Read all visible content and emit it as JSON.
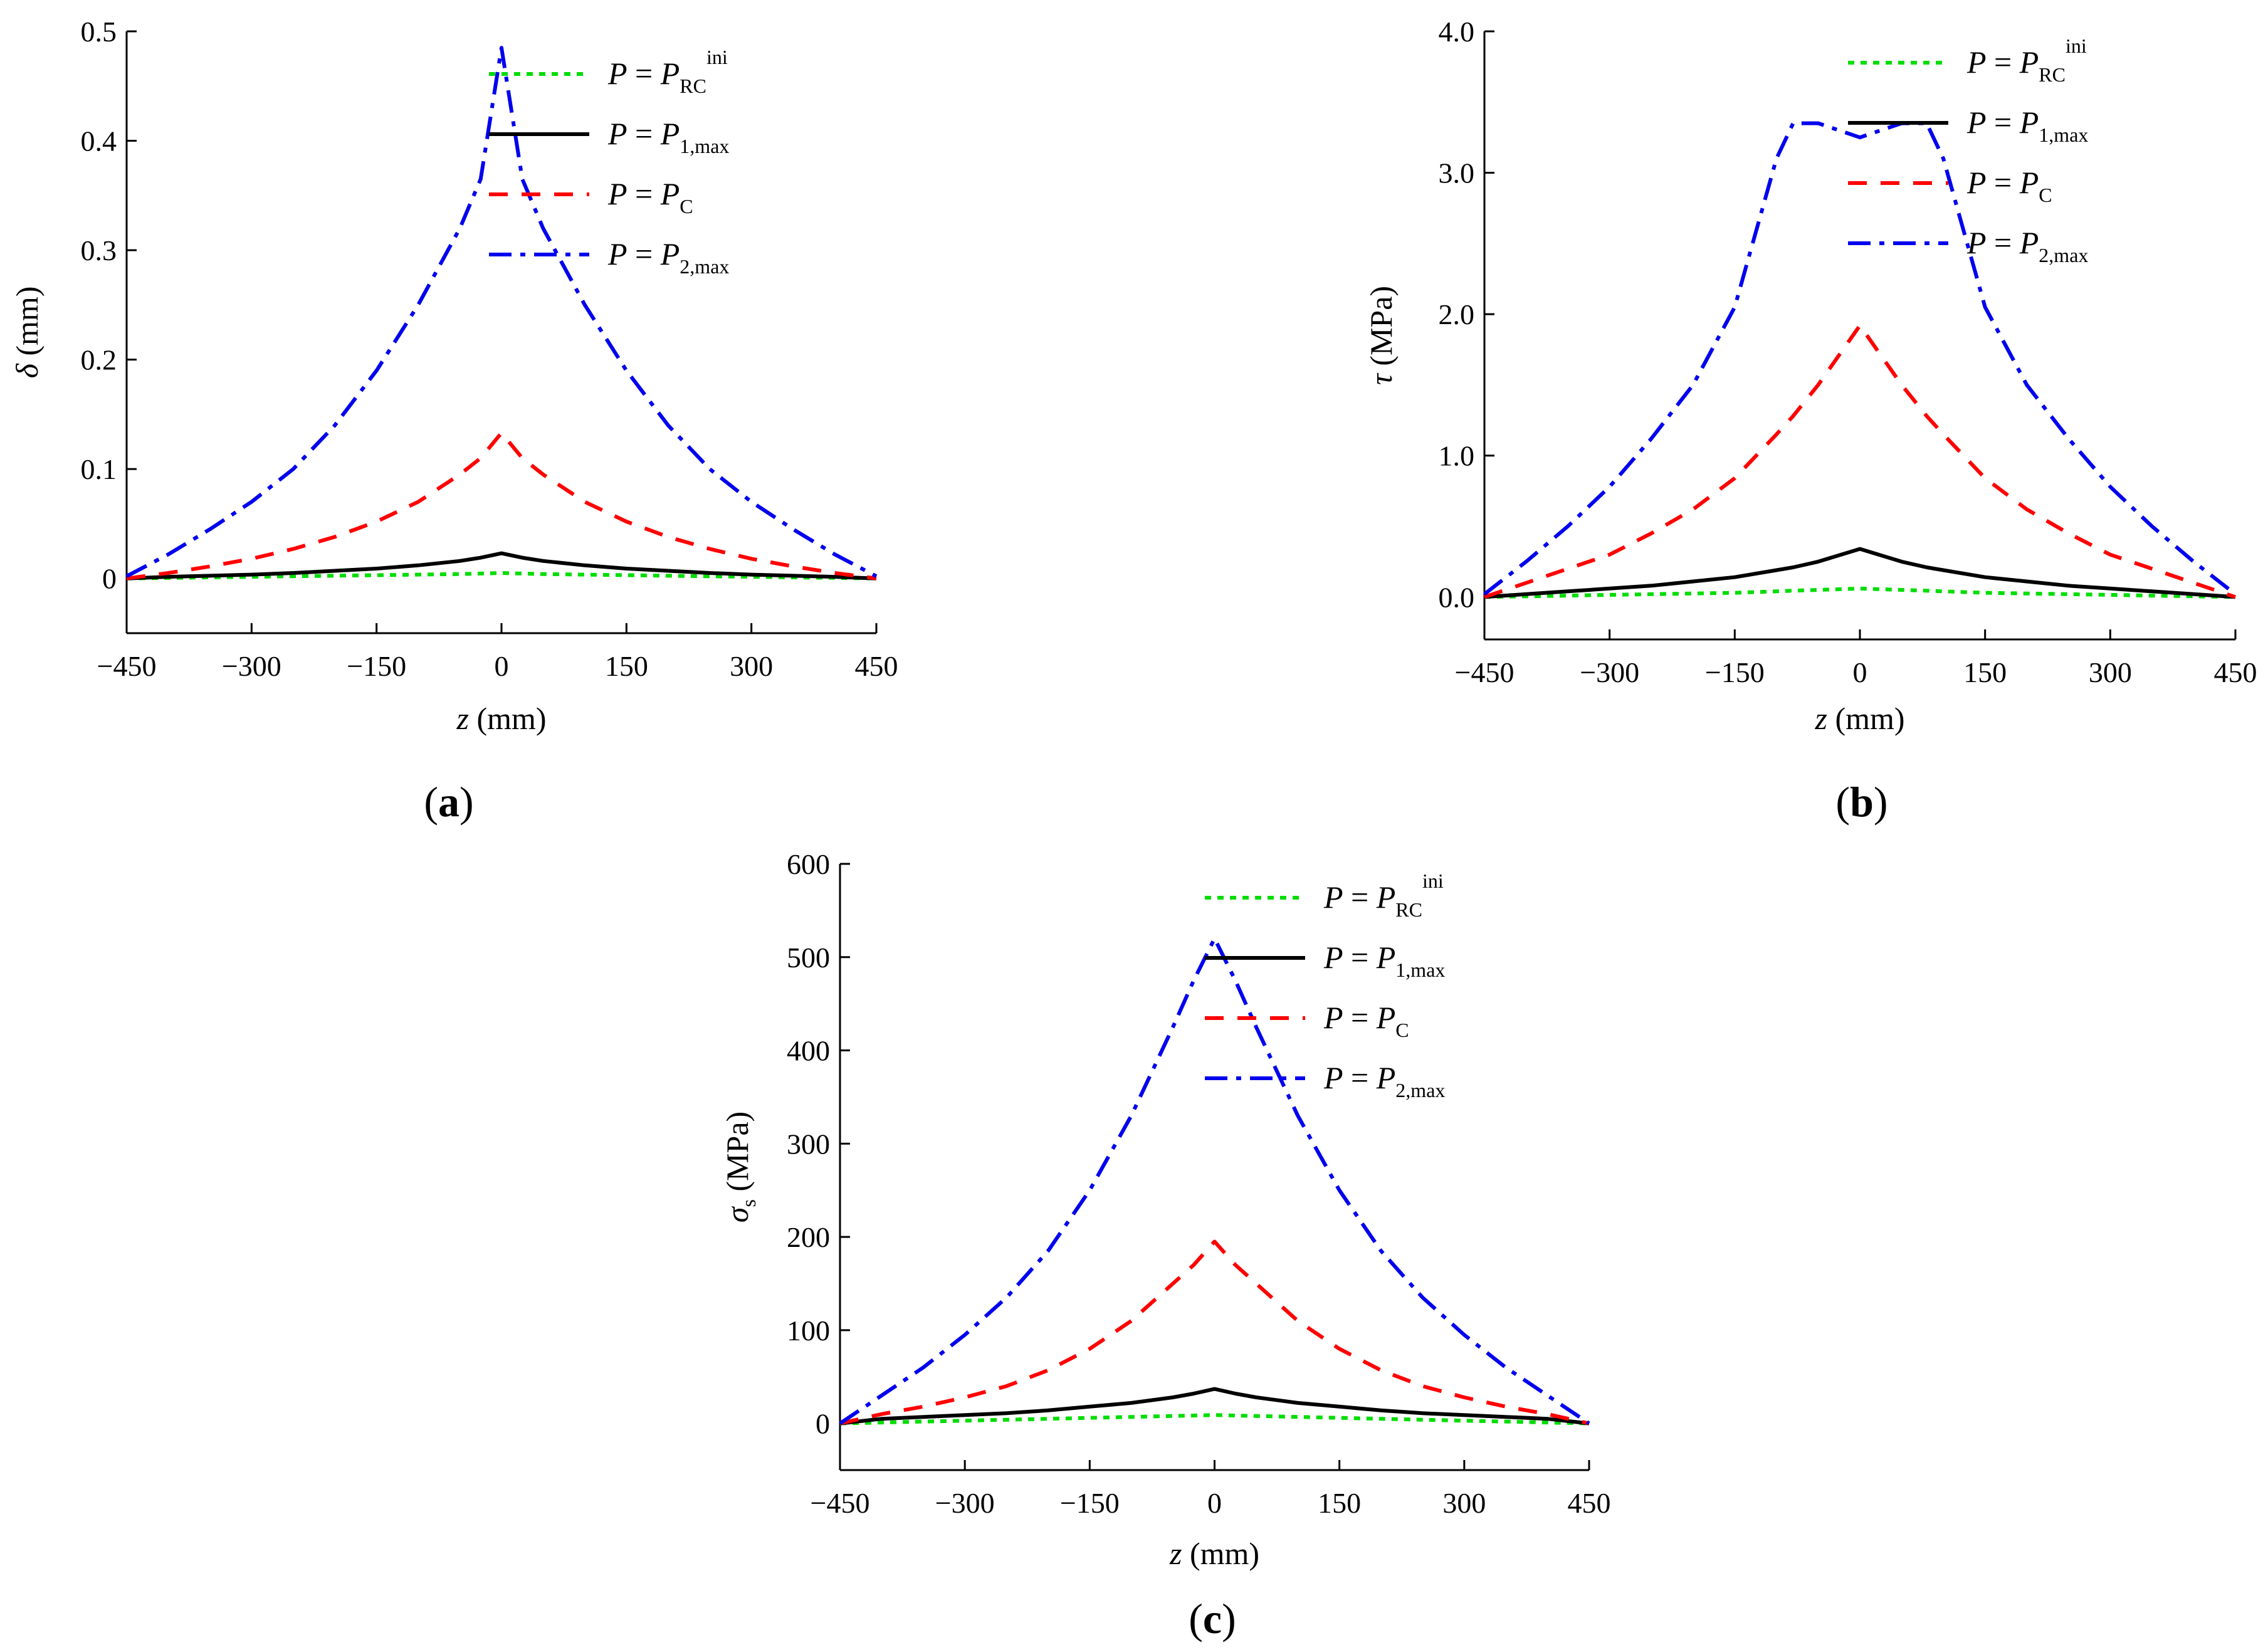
{
  "chart_data": [
    {
      "panel": "a",
      "type": "line",
      "panel_label": "a",
      "xlabel": "z",
      "xunit": "(mm)",
      "ylabel": "δ",
      "yunit": "(mm)",
      "xlim": [
        -450,
        450
      ],
      "ylim": [
        -0.05,
        0.5
      ],
      "xticks": [
        -450,
        -300,
        -150,
        0,
        150,
        300,
        450
      ],
      "xtick_labels": [
        "−450",
        "−300",
        "−150",
        "0",
        "150",
        "300",
        "450"
      ],
      "yticks": [
        0,
        0.1,
        0.2,
        0.3,
        0.4,
        0.5
      ],
      "ytick_labels": [
        "0",
        "0.1",
        "0.2",
        "0.3",
        "0.4",
        "0.5"
      ],
      "x": [
        -450,
        -400,
        -350,
        -300,
        -250,
        -200,
        -150,
        -100,
        -50,
        -25,
        0,
        25,
        50,
        100,
        150,
        200,
        250,
        300,
        350,
        400,
        450
      ],
      "series": [
        {
          "name": "P_RC^ini",
          "color": "#00dd00",
          "dash": "dot",
          "values": [
            0,
            0.0005,
            0.001,
            0.0015,
            0.002,
            0.0025,
            0.003,
            0.0035,
            0.004,
            0.0045,
            0.005,
            0.0045,
            0.004,
            0.0035,
            0.003,
            0.0025,
            0.002,
            0.0015,
            0.001,
            0.0005,
            0
          ]
        },
        {
          "name": "P_1,max",
          "color": "#000000",
          "dash": "solid",
          "values": [
            0,
            0.0015,
            0.0025,
            0.0035,
            0.005,
            0.007,
            0.009,
            0.012,
            0.016,
            0.019,
            0.023,
            0.019,
            0.016,
            0.012,
            0.009,
            0.007,
            0.005,
            0.0035,
            0.0025,
            0.0015,
            0
          ]
        },
        {
          "name": "P_C",
          "color": "#ff0000",
          "dash": "dash",
          "values": [
            0,
            0.005,
            0.011,
            0.018,
            0.027,
            0.038,
            0.052,
            0.07,
            0.095,
            0.11,
            0.133,
            0.11,
            0.095,
            0.07,
            0.052,
            0.038,
            0.027,
            0.018,
            0.011,
            0.005,
            0
          ]
        },
        {
          "name": "P_2,max",
          "color": "#0000ee",
          "dash": "dashdot",
          "values": [
            0.002,
            0.022,
            0.045,
            0.07,
            0.1,
            0.14,
            0.19,
            0.25,
            0.32,
            0.365,
            0.485,
            0.365,
            0.32,
            0.25,
            0.19,
            0.14,
            0.1,
            0.07,
            0.045,
            0.022,
            0.002
          ]
        }
      ]
    },
    {
      "panel": "b",
      "type": "line",
      "panel_label": "b",
      "xlabel": "z",
      "xunit": "(mm)",
      "ylabel": "τ",
      "yunit": "(MPa)",
      "xlim": [
        -450,
        450
      ],
      "ylim": [
        -0.3,
        4.0
      ],
      "xticks": [
        -450,
        -300,
        -150,
        0,
        150,
        300,
        450
      ],
      "xtick_labels": [
        "−450",
        "−300",
        "−150",
        "0",
        "150",
        "300",
        "450"
      ],
      "yticks": [
        0,
        1,
        2,
        3,
        4
      ],
      "ytick_labels": [
        "0.0",
        "1.0",
        "2.0",
        "3.0",
        "4.0"
      ],
      "x": [
        -450,
        -400,
        -350,
        -300,
        -250,
        -200,
        -150,
        -100,
        -80,
        -50,
        0,
        50,
        80,
        100,
        150,
        200,
        250,
        300,
        350,
        400,
        450
      ],
      "series": [
        {
          "name": "P_RC^ini",
          "color": "#00dd00",
          "dash": "dot",
          "values": [
            0,
            0.005,
            0.01,
            0.015,
            0.02,
            0.025,
            0.03,
            0.04,
            0.045,
            0.05,
            0.06,
            0.05,
            0.045,
            0.04,
            0.03,
            0.025,
            0.02,
            0.015,
            0.01,
            0.005,
            0
          ]
        },
        {
          "name": "P_1,max",
          "color": "#000000",
          "dash": "solid",
          "values": [
            0,
            0.02,
            0.04,
            0.06,
            0.08,
            0.11,
            0.14,
            0.19,
            0.21,
            0.25,
            0.34,
            0.25,
            0.21,
            0.19,
            0.14,
            0.11,
            0.08,
            0.06,
            0.04,
            0.02,
            0
          ]
        },
        {
          "name": "P_C",
          "color": "#ff0000",
          "dash": "dash",
          "values": [
            0,
            0.1,
            0.2,
            0.3,
            0.45,
            0.62,
            0.84,
            1.15,
            1.28,
            1.5,
            1.92,
            1.5,
            1.28,
            1.15,
            0.84,
            0.62,
            0.45,
            0.3,
            0.2,
            0.1,
            0
          ]
        },
        {
          "name": "P_2,max",
          "color": "#0000ee",
          "dash": "dashdot",
          "values": [
            0.02,
            0.25,
            0.5,
            0.78,
            1.12,
            1.5,
            2.05,
            3.1,
            3.35,
            3.35,
            3.25,
            3.35,
            3.35,
            3.1,
            2.05,
            1.5,
            1.12,
            0.78,
            0.5,
            0.25,
            0.02
          ]
        }
      ]
    },
    {
      "panel": "c",
      "type": "line",
      "panel_label": "c",
      "xlabel": "z",
      "xunit": "(mm)",
      "ylabel": "σ",
      "ylabel_sub": "s",
      "yunit": "(MPa)",
      "xlim": [
        -450,
        450
      ],
      "ylim": [
        -50,
        600
      ],
      "xticks": [
        -450,
        -300,
        -150,
        0,
        150,
        300,
        450
      ],
      "xtick_labels": [
        "−450",
        "−300",
        "−150",
        "0",
        "150",
        "300",
        "450"
      ],
      "yticks": [
        0,
        100,
        200,
        300,
        400,
        500,
        600
      ],
      "ytick_labels": [
        "0",
        "100",
        "200",
        "300",
        "400",
        "500",
        "600"
      ],
      "x": [
        -450,
        -400,
        -350,
        -300,
        -250,
        -200,
        -150,
        -100,
        -50,
        -25,
        0,
        25,
        50,
        100,
        150,
        200,
        250,
        300,
        350,
        400,
        450
      ],
      "series": [
        {
          "name": "P_RC^ini",
          "color": "#00dd00",
          "dash": "dot",
          "values": [
            0,
            1,
            2,
            3,
            4,
            5,
            6,
            7,
            8,
            8.5,
            9,
            8.5,
            8,
            7,
            6,
            5,
            4,
            3,
            2,
            1,
            0
          ]
        },
        {
          "name": "P_1,max",
          "color": "#000000",
          "dash": "solid",
          "values": [
            0,
            5,
            7,
            9,
            11,
            14,
            18,
            22,
            28,
            32,
            37,
            32,
            28,
            22,
            18,
            14,
            11,
            9,
            7,
            5,
            0
          ]
        },
        {
          "name": "P_C",
          "color": "#ff0000",
          "dash": "dash",
          "values": [
            0,
            10,
            18,
            28,
            40,
            57,
            80,
            110,
            150,
            170,
            195,
            170,
            150,
            110,
            80,
            57,
            40,
            28,
            18,
            10,
            0
          ]
        },
        {
          "name": "P_2,max",
          "color": "#0000ee",
          "dash": "dashdot",
          "values": [
            0,
            30,
            60,
            95,
            135,
            185,
            250,
            330,
            425,
            475,
            520,
            475,
            425,
            330,
            250,
            185,
            135,
            95,
            60,
            30,
            0
          ]
        }
      ]
    }
  ],
  "legend": [
    {
      "main": "P",
      "eq": " = ",
      "rhs": "P",
      "sub": "RC",
      "sup": "ini"
    },
    {
      "main": "P",
      "eq": " = ",
      "rhs": "P",
      "sub": "1,max",
      "sup": ""
    },
    {
      "main": "P",
      "eq": " = ",
      "rhs": "P",
      "sub": "C",
      "sup": ""
    },
    {
      "main": "P",
      "eq": " = ",
      "rhs": "P",
      "sub": "2,max",
      "sup": ""
    }
  ]
}
